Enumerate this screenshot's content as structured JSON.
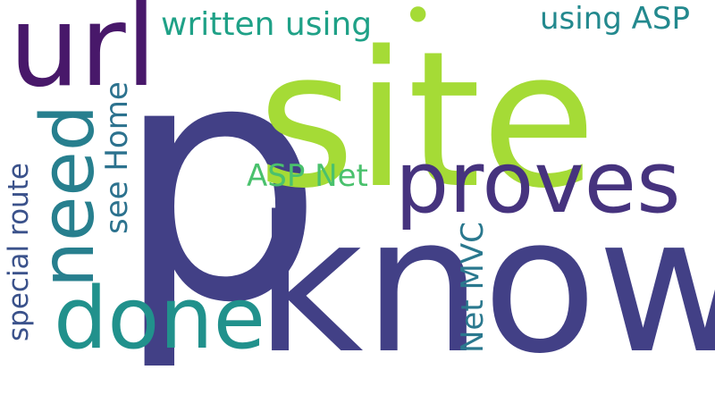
{
  "words": [
    {
      "text": "p",
      "color": "#424086"
    },
    {
      "text": "site",
      "color": "#a5db36"
    },
    {
      "text": "know",
      "color": "#424086"
    },
    {
      "text": "url",
      "color": "#48186a"
    },
    {
      "text": "proves",
      "color": "#46337e"
    },
    {
      "text": "need",
      "color": "#277f8e"
    },
    {
      "text": "done",
      "color": "#21918c"
    },
    {
      "text": "see Home",
      "color": "#2c728e"
    },
    {
      "text": "special route",
      "color": "#3b528b"
    },
    {
      "text": "ASP Net",
      "color": "#4ac16d"
    },
    {
      "text": "Net MVC",
      "color": "#2a788e"
    },
    {
      "text": "written using",
      "color": "#1fa187"
    },
    {
      "text": "using ASP",
      "color": "#23898e"
    },
    {
      "text": "•",
      "color": "#a5db36"
    }
  ]
}
